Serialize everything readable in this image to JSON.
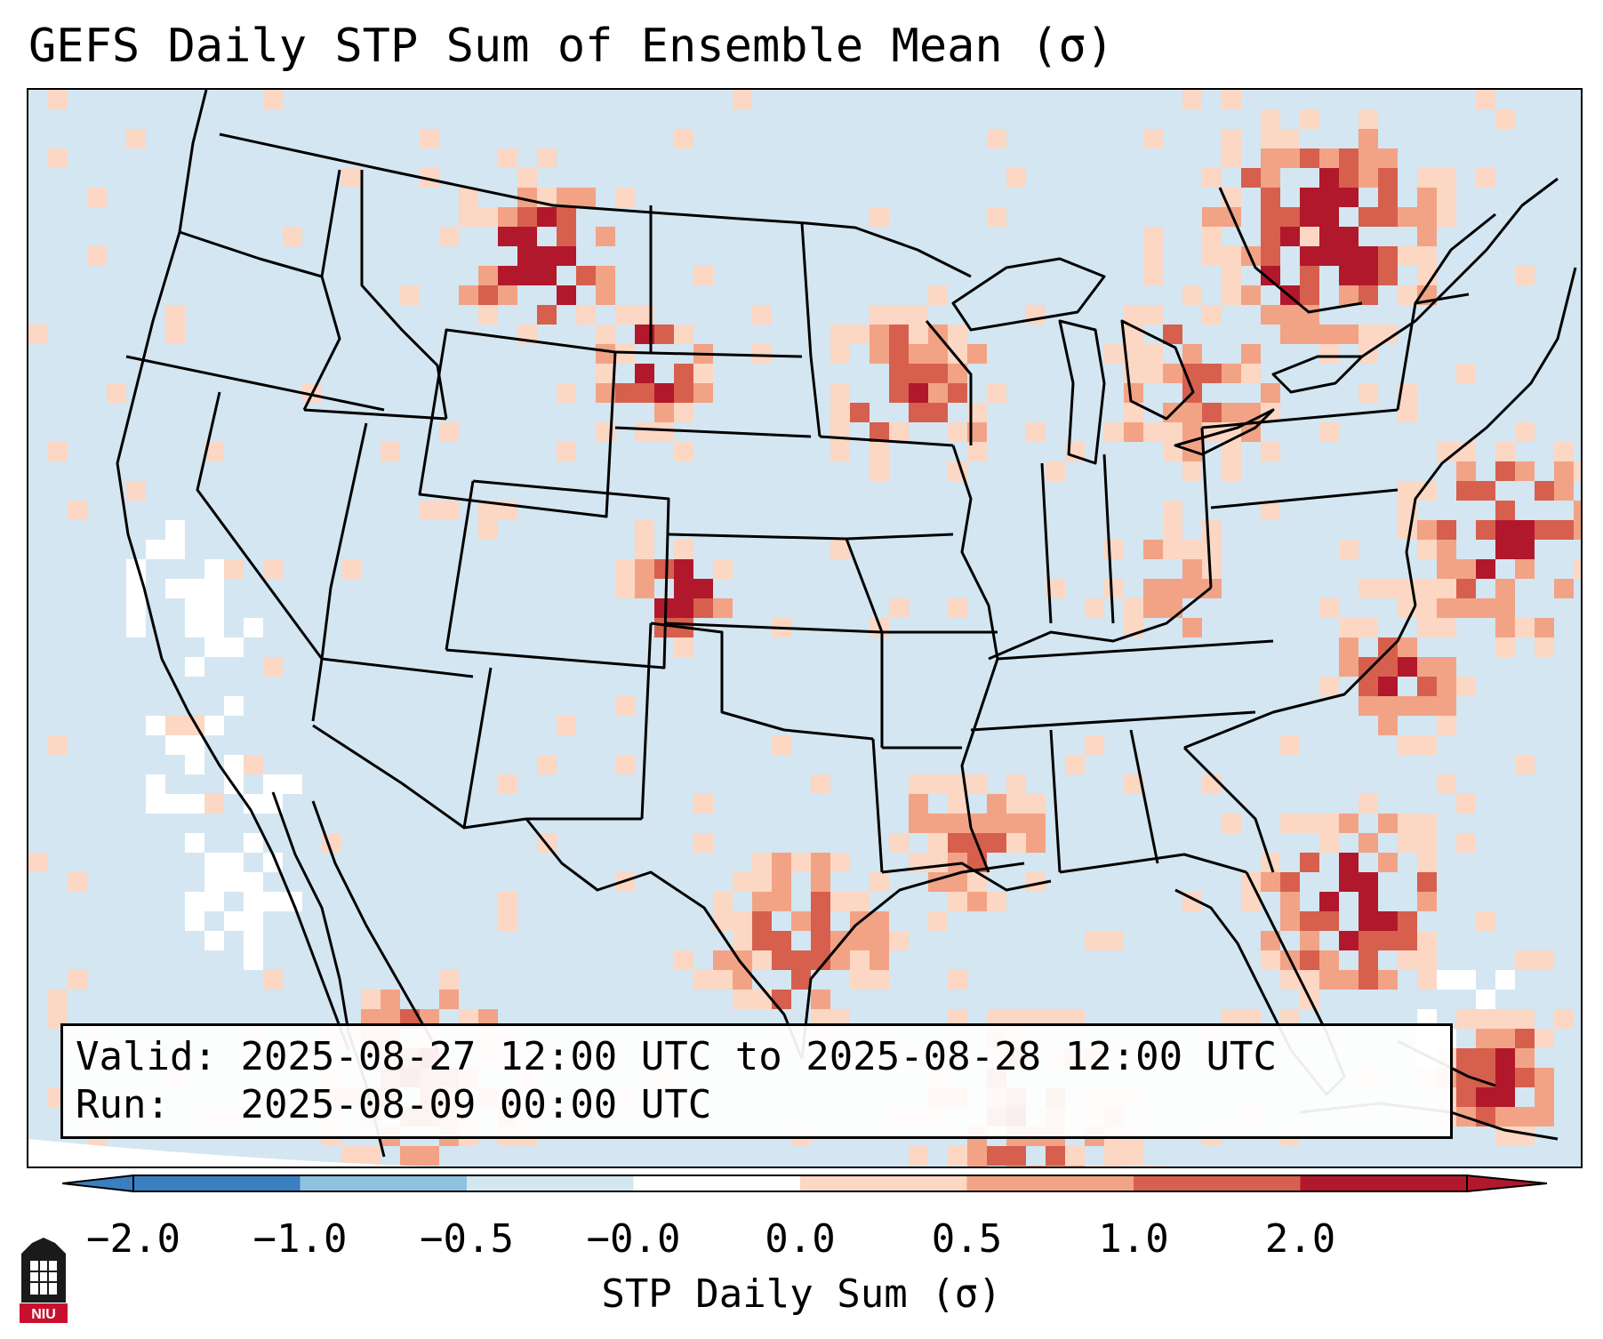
{
  "title": "GEFS Daily STP Sum of Ensemble Mean (σ)",
  "info": {
    "valid_label": "Valid:",
    "valid_value": "2025-08-27 12:00 UTC to 2025-08-28 12:00 UTC",
    "run_label": "Run:",
    "run_value": "2025-08-09 00:00 UTC"
  },
  "colorbar": {
    "label": "STP Daily Sum (σ)",
    "ticks": [
      "−2.0",
      "−1.0",
      "−0.5",
      "−0.0",
      "0.0",
      "0.5",
      "1.0",
      "2.0"
    ],
    "colors": [
      "#3a7fc0",
      "#8ec3e0",
      "#d4e6f1",
      "#ffffff",
      "#fbd7c4",
      "#f2a385",
      "#d6604d",
      "#b2182b"
    ]
  },
  "map": {
    "background_color": "#d4e6f1",
    "ocean_pale_color": "#ffffff",
    "border_color": "#000000"
  },
  "logo": {
    "text": "NIU"
  }
}
